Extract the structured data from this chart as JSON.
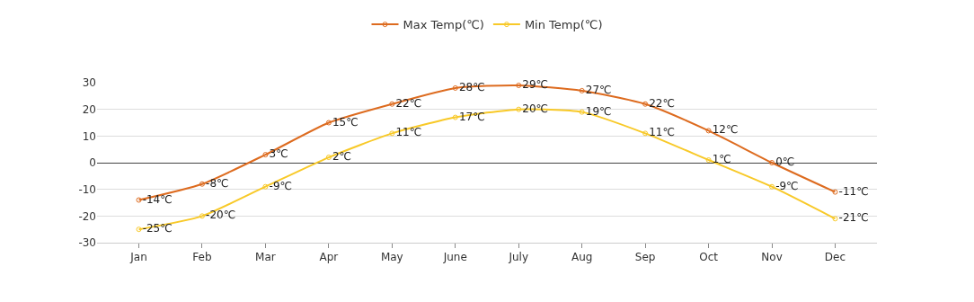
{
  "chart_data": {
    "type": "line",
    "categories": [
      "Jan",
      "Feb",
      "Mar",
      "Apr",
      "May",
      "June",
      "July",
      "Aug",
      "Sep",
      "Oct",
      "Nov",
      "Dec"
    ],
    "series": [
      {
        "name": "Max Temp(℃)",
        "color": "#dd6b1f",
        "values": [
          -14,
          -8,
          3,
          15,
          22,
          28,
          29,
          27,
          22,
          12,
          0,
          -11
        ],
        "value_labels": [
          "-14℃",
          "-8℃",
          "3℃",
          "15℃",
          "22℃",
          "28℃",
          "29℃",
          "27℃",
          "22℃",
          "12℃",
          "0℃",
          "-11℃"
        ]
      },
      {
        "name": "Min Temp(℃)",
        "color": "#f8c928",
        "values": [
          -25,
          -20,
          -9,
          2,
          11,
          17,
          20,
          19,
          11,
          1,
          -9,
          -21
        ],
        "value_labels": [
          "-25℃",
          "-20℃",
          "-9℃",
          "2℃",
          "11℃",
          "17℃",
          "20℃",
          "19℃",
          "11℃",
          "1℃",
          "-9℃",
          "-21℃"
        ]
      }
    ],
    "ylim": [
      -30,
      30
    ],
    "yticks": [
      -30,
      -20,
      -10,
      0,
      10,
      20,
      30
    ],
    "grid": "y",
    "legend": "top",
    "marker": "circle",
    "line_style": "solid"
  }
}
